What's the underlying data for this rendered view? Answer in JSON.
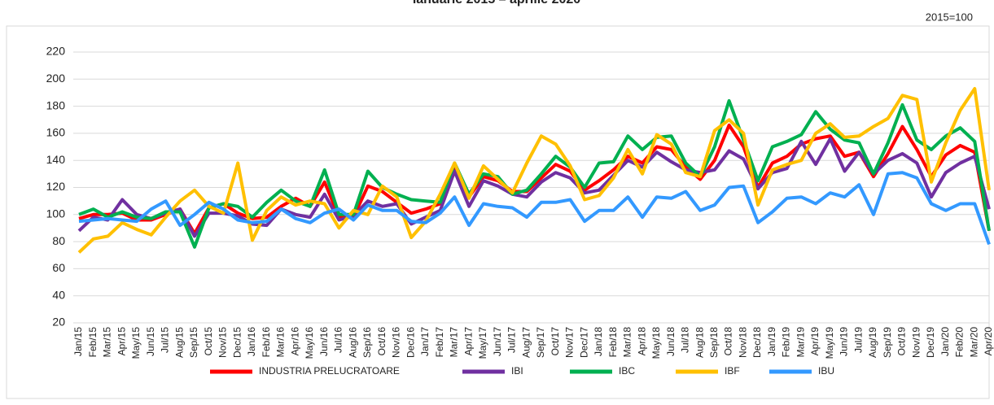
{
  "chart_data": {
    "type": "line",
    "title": "ianuarie 2015 – aprilie 2020",
    "subtitle": "2015=100",
    "categories": [
      "Jan/15",
      "Feb/15",
      "Mar/15",
      "Apr/15",
      "May/15",
      "Jun/15",
      "Jul/15",
      "Aug/15",
      "Sep/15",
      "Oct/15",
      "Nov/15",
      "Dec/15",
      "Jan/16",
      "Feb/16",
      "Mar/16",
      "Apr/16",
      "May/16",
      "Jun/16",
      "Jul/16",
      "Aug/16",
      "Sep/16",
      "Oct/16",
      "Nov/16",
      "Dec/16",
      "Jan/17",
      "Feb/17",
      "Mar/17",
      "Apr/17",
      "May/17",
      "Jun/17",
      "Jul/17",
      "Aug/17",
      "Sep/17",
      "Oct/17",
      "Nov/17",
      "Dec/17",
      "Jan/18",
      "Feb/18",
      "Mar/18",
      "Apr/18",
      "May/18",
      "Jun/18",
      "Jul/18",
      "Aug/18",
      "Sep/18",
      "Oct/18",
      "Nov/18",
      "Dec/18",
      "Jan/19",
      "Feb/19",
      "Mar/19",
      "Apr/19",
      "May/19",
      "Jun/19",
      "Jul/19",
      "Aug/19",
      "Sep/19",
      "Oct/19",
      "Nov/19",
      "Dec/19",
      "Jan/20",
      "Feb/20",
      "Mar/20",
      "Apr/20"
    ],
    "series": [
      {
        "name": "INDUSTRIA PRELUCRATOARE",
        "color": "#ff0000",
        "values": [
          97,
          100,
          100,
          101,
          96,
          96,
          100,
          104,
          86,
          105,
          108,
          101,
          97,
          98,
          106,
          112,
          106,
          124,
          98,
          98,
          121,
          117,
          109,
          101,
          104,
          108,
          135,
          113,
          128,
          125,
          117,
          117,
          127,
          137,
          132,
          118,
          125,
          133,
          143,
          138,
          150,
          148,
          135,
          126,
          140,
          166,
          150,
          120,
          138,
          143,
          152,
          156,
          158,
          143,
          146,
          128,
          145,
          165,
          148,
          128,
          144,
          151,
          146,
          88
        ]
      },
      {
        "name": "IBI",
        "color": "#7030a0",
        "values": [
          88,
          98,
          96,
          111,
          100,
          97,
          101,
          104,
          84,
          101,
          101,
          99,
          93,
          92,
          104,
          100,
          98,
          115,
          96,
          99,
          110,
          106,
          108,
          93,
          98,
          103,
          132,
          106,
          125,
          121,
          115,
          113,
          124,
          131,
          127,
          116,
          118,
          129,
          140,
          135,
          146,
          139,
          133,
          131,
          133,
          147,
          141,
          119,
          131,
          134,
          154,
          137,
          156,
          132,
          146,
          130,
          140,
          145,
          138,
          113,
          131,
          138,
          143,
          104
        ]
      },
      {
        "name": "IBC",
        "color": "#00b050",
        "values": [
          100,
          104,
          98,
          102,
          98,
          97,
          102,
          102,
          76,
          105,
          108,
          106,
          98,
          109,
          118,
          110,
          106,
          133,
          100,
          100,
          132,
          120,
          115,
          111,
          110,
          109,
          138,
          115,
          130,
          128,
          115,
          118,
          130,
          143,
          135,
          120,
          138,
          139,
          158,
          148,
          157,
          158,
          138,
          128,
          150,
          184,
          155,
          125,
          150,
          154,
          159,
          176,
          163,
          155,
          153,
          130,
          153,
          181,
          155,
          148,
          158,
          164,
          154,
          88
        ]
      },
      {
        "name": "IBF",
        "color": "#ffc000",
        "values": [
          72,
          82,
          84,
          94,
          89,
          85,
          98,
          110,
          118,
          106,
          101,
          138,
          81,
          103,
          113,
          107,
          110,
          108,
          90,
          103,
          100,
          121,
          113,
          83,
          95,
          115,
          138,
          112,
          136,
          126,
          116,
          138,
          158,
          152,
          136,
          111,
          114,
          127,
          148,
          130,
          159,
          152,
          131,
          128,
          162,
          170,
          160,
          107,
          133,
          137,
          140,
          160,
          167,
          157,
          158,
          165,
          171,
          188,
          185,
          124,
          153,
          177,
          193,
          118
        ]
      },
      {
        "name": "IBU",
        "color": "#3399ff",
        "values": [
          95,
          96,
          97,
          96,
          95,
          104,
          110,
          92,
          100,
          109,
          104,
          96,
          94,
          95,
          104,
          97,
          94,
          101,
          104,
          96,
          107,
          103,
          103,
          95,
          94,
          101,
          113,
          92,
          108,
          106,
          105,
          98,
          109,
          109,
          111,
          95,
          103,
          103,
          113,
          98,
          113,
          112,
          117,
          103,
          107,
          120,
          121,
          94,
          102,
          112,
          113,
          108,
          116,
          113,
          122,
          100,
          130,
          131,
          127,
          108,
          103,
          108,
          108,
          78
        ]
      }
    ],
    "ylim": [
      20,
      220
    ],
    "yticks": [
      20,
      40,
      60,
      80,
      100,
      120,
      140,
      160,
      180,
      200,
      220
    ],
    "grid": true,
    "legend": "bottom"
  }
}
